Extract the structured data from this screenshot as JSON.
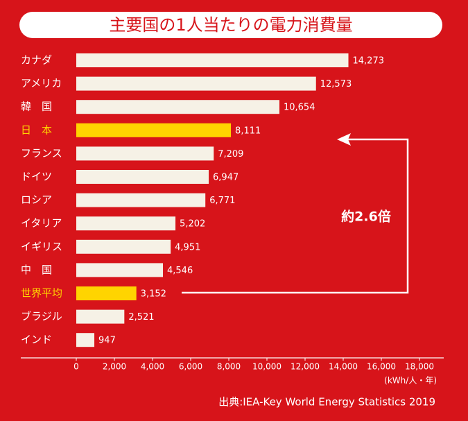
{
  "chart_data": {
    "type": "barh",
    "title": "主要国の1人当たりの電力消費量",
    "categories": [
      "カナダ",
      "アメリカ",
      "韓　国",
      "日　本",
      "フランス",
      "ドイツ",
      "ロシア",
      "イタリア",
      "イギリス",
      "中　国",
      "世界平均",
      "ブラジル",
      "インド"
    ],
    "values": [
      14273,
      12573,
      10654,
      8111,
      7209,
      6947,
      6771,
      5202,
      4951,
      4546,
      3152,
      2521,
      947
    ],
    "value_labels": [
      "14,273",
      "12,573",
      "10,654",
      "8,111",
      "7,209",
      "6,947",
      "6,771",
      "5,202",
      "4,951",
      "4,546",
      "3,152",
      "2,521",
      "947"
    ],
    "colors": [
      "#f6f1e6",
      "#f6f1e6",
      "#f6f1e6",
      "#ffd400",
      "#f6f1e6",
      "#f6f1e6",
      "#f6f1e6",
      "#f6f1e6",
      "#f6f1e6",
      "#f6f1e6",
      "#ffd400",
      "#f6f1e6",
      "#f6f1e6"
    ],
    "label_colors": [
      "#ffffff",
      "#ffffff",
      "#ffffff",
      "#ffd400",
      "#ffffff",
      "#ffffff",
      "#ffffff",
      "#ffffff",
      "#ffffff",
      "#ffffff",
      "#ffd400",
      "#ffffff",
      "#ffffff"
    ],
    "xlim": [
      0,
      18000
    ],
    "xticks": [
      0,
      {
        "value": 2000,
        "label": "2,000"
      },
      {
        "value": 4000,
        "label": "4,000"
      },
      {
        "value": 6000,
        "label": "6,000"
      },
      {
        "value": 8000,
        "label": "8,000"
      },
      {
        "value": 10000,
        "label": "10,000"
      },
      {
        "value": 12000,
        "label": "12,000"
      },
      {
        "value": 14000,
        "label": "14,000"
      },
      {
        "value": 16000,
        "label": "16,000"
      },
      {
        "value": 18000,
        "label": "18,000"
      }
    ],
    "x_unit": "(kWh/人・年)",
    "annotation": "約2.6倍",
    "source": "出典:IEA-Key World Energy Statistics 2019"
  }
}
